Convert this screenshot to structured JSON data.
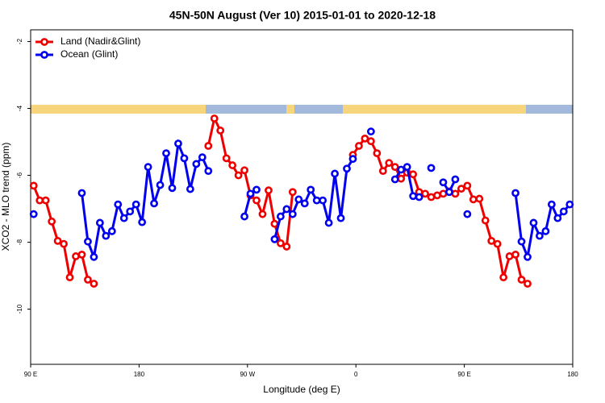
{
  "chart_data": {
    "type": "line",
    "title": "45N-50N August (Ver 10)   2015-01-01 to 2020-12-18",
    "xlabel": "Longitude (deg E)",
    "ylabel": "XCO2 - MLO trend (ppm)",
    "x": [
      92.5,
      97.5,
      102.5,
      107.5,
      112.5,
      117.5,
      122.5,
      127.5,
      132.5,
      137.5,
      142.5,
      147.5,
      152.5,
      157.5,
      162.5,
      167.5,
      172.5,
      177.5,
      182.5,
      187.5,
      192.5,
      197.5,
      202.5,
      207.5,
      212.5,
      217.5,
      222.5,
      227.5,
      232.5,
      237.5,
      242.5,
      247.5,
      252.5,
      257.5,
      262.5,
      267.5,
      272.5,
      277.5,
      282.5,
      287.5,
      292.5,
      297.5,
      302.5,
      307.5,
      312.5,
      317.5,
      322.5,
      327.5,
      332.5,
      337.5,
      342.5,
      347.5,
      352.5,
      357.5,
      362.5,
      367.5,
      372.5,
      377.5,
      382.5,
      387.5,
      392.5,
      397.5,
      402.5,
      407.5,
      412.5,
      417.5,
      422.5,
      427.5,
      432.5,
      437.5,
      442.5,
      447.5,
      452.5,
      457.5,
      462.5,
      467.5,
      472.5,
      477.5,
      482.5,
      487.5,
      492.5,
      497.5,
      502.5,
      507.5,
      512.5,
      517.5,
      522.5,
      527.5,
      532.5,
      537.5
    ],
    "series": [
      {
        "name": "Land (Nadir&Glint)",
        "color": "#ee0000",
        "values": [
          -6.31,
          -6.75,
          -6.75,
          -7.38,
          -7.96,
          -8.05,
          -9.05,
          -8.42,
          -8.37,
          -9.12,
          -9.24,
          null,
          null,
          null,
          null,
          null,
          null,
          null,
          null,
          null,
          null,
          null,
          null,
          null,
          null,
          null,
          null,
          null,
          null,
          -5.12,
          -4.3,
          -4.66,
          -5.49,
          -5.7,
          -6.0,
          -5.85,
          -6.6,
          -6.75,
          -7.16,
          -6.45,
          -7.45,
          -8.03,
          -8.13,
          -6.5,
          null,
          null,
          null,
          null,
          null,
          null,
          null,
          null,
          null,
          -5.39,
          -5.12,
          -4.9,
          -4.98,
          -5.34,
          -5.87,
          -5.63,
          -5.75,
          -6.1,
          -5.92,
          -5.97,
          -6.5,
          -6.55,
          -6.65,
          -6.6,
          -6.55,
          -6.48,
          -6.55,
          -6.4,
          -6.31,
          -6.72,
          -6.7,
          -7.35,
          -7.96,
          -8.05,
          -9.05,
          -8.42,
          -8.37,
          -9.12,
          -9.24,
          null,
          null,
          null,
          null,
          null,
          null,
          null
        ]
      },
      {
        "name": "Ocean (Glint)",
        "color": "#0000ee",
        "values": [
          -7.16,
          null,
          null,
          null,
          null,
          null,
          null,
          null,
          -6.53,
          -7.98,
          -8.44,
          -7.42,
          -7.81,
          -7.67,
          -6.87,
          -7.28,
          -7.08,
          -6.87,
          -7.4,
          -5.75,
          -6.84,
          -6.29,
          -5.34,
          -6.38,
          -5.05,
          -5.49,
          -6.41,
          -5.66,
          -5.46,
          -5.87,
          null,
          null,
          null,
          null,
          null,
          -7.23,
          -6.55,
          -6.43,
          null,
          null,
          -7.91,
          -7.23,
          -7.01,
          -7.16,
          -6.72,
          -6.84,
          -6.43,
          -6.75,
          -6.75,
          -7.42,
          -5.95,
          -7.28,
          -5.8,
          -5.51,
          null,
          null,
          -4.69,
          null,
          null,
          null,
          -6.12,
          -5.83,
          -5.75,
          -6.62,
          -6.65,
          null,
          -5.78,
          null,
          -6.21,
          -6.5,
          -6.12,
          null,
          -7.16,
          null,
          null,
          null,
          null,
          null,
          null,
          null,
          -6.53,
          -7.98,
          -8.44,
          -7.42,
          -7.81,
          -7.67,
          -6.87,
          -7.28,
          -7.08,
          -6.87
        ]
      }
    ],
    "xlim": [
      90,
      540
    ],
    "xticks": [
      {
        "value": 90,
        "label": "90 E"
      },
      180,
      {
        "value": 270,
        "label": "90 W"
      },
      {
        "value": 360,
        "label": "0"
      },
      {
        "value": 450,
        "label": "90 E"
      },
      {
        "value": 540,
        "label": "180"
      }
    ],
    "ylim": [
      -11.65,
      -1.65
    ],
    "yticks": [
      -10,
      -8,
      -6,
      -4,
      -2
    ],
    "legend": "upper left",
    "grid": false
  }
}
